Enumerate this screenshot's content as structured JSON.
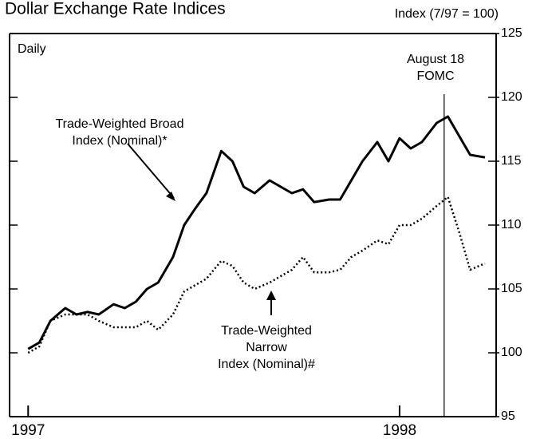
{
  "chart_data": {
    "type": "line",
    "title": "Dollar Exchange Rate Indices",
    "y_axis_label": "Index (7/97 = 100)",
    "frequency_label": "Daily",
    "vline": {
      "x": 1998.12,
      "label": [
        "August 18",
        "FOMC"
      ]
    },
    "x": [
      1997.0,
      1997.03,
      1997.06,
      1997.1,
      1997.13,
      1997.16,
      1997.19,
      1997.23,
      1997.26,
      1997.29,
      1997.32,
      1997.35,
      1997.39,
      1997.42,
      1997.45,
      1997.48,
      1997.52,
      1997.55,
      1997.58,
      1997.61,
      1997.65,
      1997.68,
      1997.71,
      1997.74,
      1997.77,
      1997.81,
      1997.84,
      1997.87,
      1997.9,
      1997.94,
      1997.97,
      1998.0,
      1998.03,
      1998.06,
      1998.1,
      1998.13,
      1998.16,
      1998.19,
      1998.23
    ],
    "series": [
      {
        "name": [
          "Trade-Weighted Broad",
          "Index (Nominal)*"
        ],
        "color": "#000000",
        "dash": "solid",
        "values": [
          100.3,
          100.8,
          102.5,
          103.5,
          103,
          103.2,
          103,
          103.8,
          103.5,
          104,
          105,
          105.5,
          107.5,
          110,
          111.3,
          112.5,
          115.8,
          115,
          113,
          112.5,
          113.5,
          113,
          112.5,
          112.8,
          111.8,
          112,
          112,
          113.5,
          115,
          116.5,
          115,
          116.8,
          116,
          116.5,
          118,
          118.5,
          117,
          115.5,
          115.3
        ]
      },
      {
        "name": [
          "Trade-Weighted",
          "Narrow",
          "Index (Nominal)#"
        ],
        "color": "#000000",
        "dash": "dotted",
        "values": [
          100,
          100.5,
          102.5,
          103,
          103,
          103,
          102.5,
          102,
          102,
          102,
          102.5,
          101.8,
          103,
          104.8,
          105.3,
          105.8,
          107.2,
          106.8,
          105.5,
          105,
          105.5,
          106,
          106.5,
          107.5,
          106.3,
          106.3,
          106.5,
          107.5,
          108,
          108.8,
          108.5,
          110,
          110,
          110.5,
          111.5,
          112.2,
          109.5,
          106.5,
          107
        ]
      }
    ],
    "xlim": [
      1996.95,
      1998.26
    ],
    "xticks": [
      {
        "value": 1997,
        "label": "1997"
      },
      {
        "value": 1998,
        "label": "1998"
      }
    ],
    "ylim": [
      95,
      125
    ],
    "yticks": [
      95,
      100,
      105,
      110,
      115,
      120,
      125
    ],
    "grid": false
  }
}
